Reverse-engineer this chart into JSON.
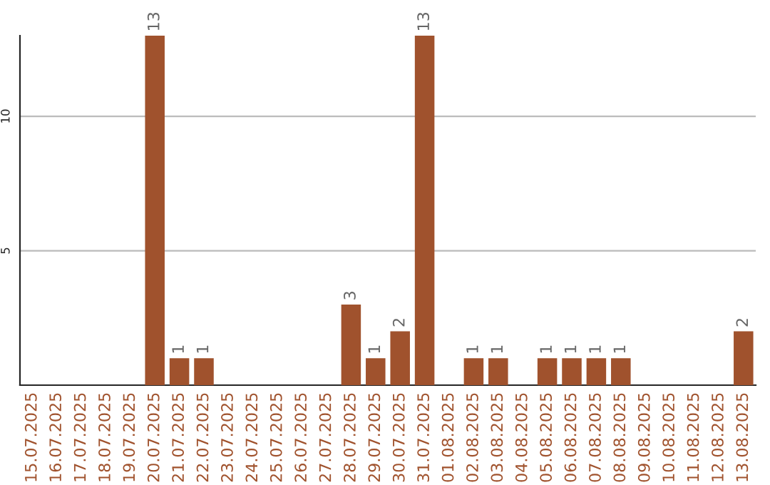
{
  "chart_data": {
    "type": "bar",
    "categories": [
      "15.07.2025",
      "16.07.2025",
      "17.07.2025",
      "18.07.2025",
      "19.07.2025",
      "20.07.2025",
      "21.07.2025",
      "22.07.2025",
      "23.07.2025",
      "24.07.2025",
      "25.07.2025",
      "26.07.2025",
      "27.07.2025",
      "28.07.2025",
      "29.07.2025",
      "30.07.2025",
      "31.07.2025",
      "01.08.2025",
      "02.08.2025",
      "03.08.2025",
      "04.08.2025",
      "05.08.2025",
      "06.08.2025",
      "07.08.2025",
      "08.08.2025",
      "09.08.2025",
      "10.08.2025",
      "11.08.2025",
      "12.08.2025",
      "13.08.2025"
    ],
    "values": [
      null,
      null,
      null,
      null,
      null,
      13,
      1,
      1,
      null,
      null,
      null,
      null,
      null,
      3,
      1,
      2,
      13,
      null,
      1,
      1,
      null,
      1,
      1,
      1,
      1,
      null,
      null,
      null,
      null,
      2
    ],
    "value_labels": [
      null,
      null,
      null,
      null,
      null,
      "13",
      "1",
      "1",
      null,
      null,
      null,
      null,
      null,
      "3",
      "1",
      "2",
      "13",
      null,
      "1",
      "1",
      null,
      "1",
      "1",
      "1",
      "1",
      null,
      null,
      null,
      null,
      "2"
    ],
    "color": "#a0522d",
    "ylim": [
      0,
      13
    ],
    "yticks": [
      5,
      10
    ],
    "grid": "y"
  }
}
